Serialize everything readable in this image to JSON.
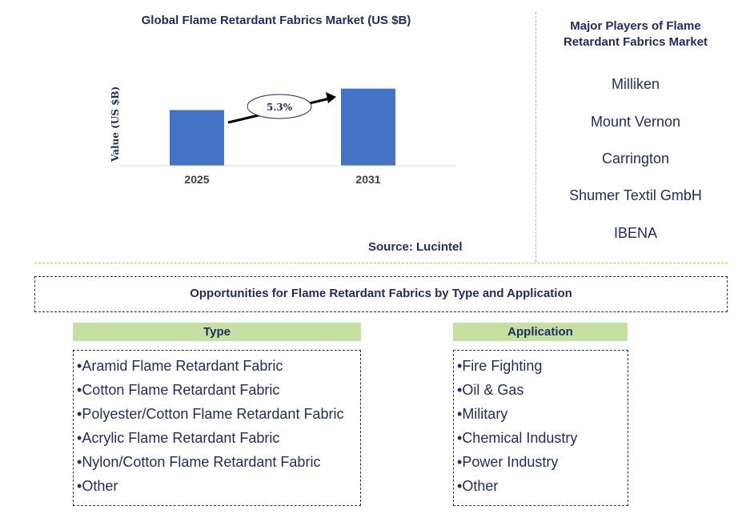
{
  "chart_data": {
    "type": "bar",
    "title": "Global Flame Retardant Fabrics Market (US $B)",
    "ylabel": "Value (US $B)",
    "categories": [
      "2025",
      "2031"
    ],
    "values": [
      2.6,
      3.6
    ],
    "ylim": [
      0,
      4
    ],
    "bar_color": "#4472c4",
    "annotation": "5.3%"
  },
  "source": "Source: Lucintel",
  "players": {
    "title": "Major Players of Flame Retardant Fabrics Market",
    "items": [
      "Milliken",
      "Mount Vernon",
      "Carrington",
      "Shumer Textil GmbH",
      "IBENA"
    ]
  },
  "opportunities": {
    "title": "Opportunities for Flame Retardant Fabrics by Type and Application",
    "type_header": "Type",
    "type_items": [
      "Aramid Flame Retardant Fabric",
      "Cotton Flame Retardant Fabric",
      "Polyester/Cotton Flame Retardant Fabric",
      "Acrylic Flame Retardant Fabric",
      "Nylon/Cotton Flame Retardant Fabric",
      "Other"
    ],
    "application_header": "Application",
    "application_items": [
      "Fire Fighting",
      "Oil & Gas",
      "Military",
      "Chemical Industry",
      "Power Industry",
      "Other"
    ]
  },
  "colors": {
    "text": "#1f2d5a",
    "header_bg": "#c6e0a4",
    "divider": "#e3b24a"
  }
}
